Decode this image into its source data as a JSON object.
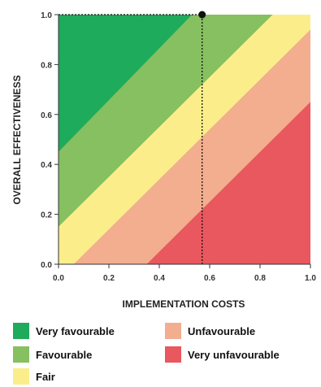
{
  "chart_data": {
    "type": "area",
    "xlabel": "IMPLEMENTATION COSTS",
    "ylabel": "OVERALL EFFECTIVENESS",
    "xlim": [
      0,
      1
    ],
    "ylim": [
      0,
      1
    ],
    "xticks": [
      "0.0",
      "0.2",
      "0.4",
      "0.6",
      "0.8",
      "1.0"
    ],
    "yticks": [
      "0.0",
      "0.2",
      "0.4",
      "0.6",
      "0.8",
      "1.0"
    ],
    "grid": false,
    "regions": [
      {
        "name": "Very unfavourable",
        "color": "#e8585e",
        "boundary": {
          "x_at_y0": 0.35,
          "y_at_x1": 0.65
        }
      },
      {
        "name": "Unfavourable",
        "color": "#f2ae8f",
        "boundary": {
          "x_at_y0": 0.06,
          "y_at_x1": 0.94
        }
      },
      {
        "name": "Fair",
        "color": "#fbee8a",
        "boundary": {
          "y_at_x0": 0.15,
          "x_at_y1": 0.85
        }
      },
      {
        "name": "Favourable",
        "color": "#86c060",
        "boundary": {
          "y_at_x0": 0.45,
          "x_at_y1": 0.53
        }
      },
      {
        "name": "Very favourable",
        "color": "#1eab5b"
      }
    ],
    "point": {
      "x": 0.57,
      "y": 1.0
    },
    "reference_lines": [
      {
        "orientation": "horizontal",
        "value": 1.0,
        "from": 0,
        "to": 0.57,
        "style": "dotted"
      },
      {
        "orientation": "vertical",
        "value": 0.57,
        "from": 0,
        "to": 1.0,
        "style": "dotted"
      }
    ]
  },
  "legend": [
    {
      "label": "Very favourable",
      "color": "#1eab5b"
    },
    {
      "label": "Unfavourable",
      "color": "#f2ae8f"
    },
    {
      "label": "Favourable",
      "color": "#86c060"
    },
    {
      "label": "Very unfavourable",
      "color": "#e8585e"
    },
    {
      "label": "Fair",
      "color": "#fbee8a"
    }
  ]
}
